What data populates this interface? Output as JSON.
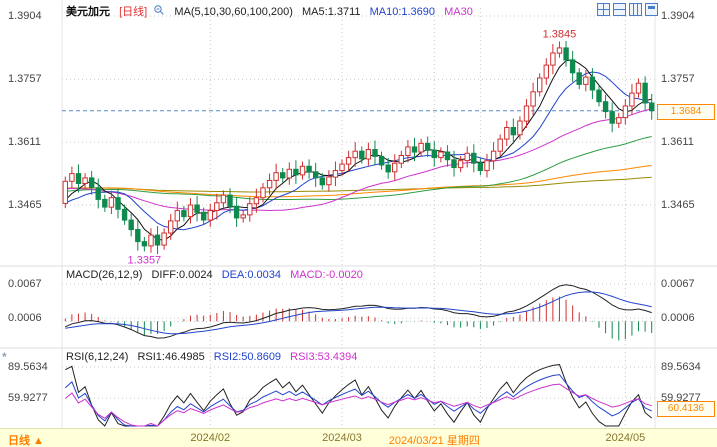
{
  "header": {
    "symbol": "美元加元",
    "period_tag": "[日线]",
    "ma_label": "MA(5,10,30,60,100,200)",
    "ma5": "MA5:1.3711",
    "ma10": "MA10:1.3690",
    "ma30": "MA30"
  },
  "price_axis": {
    "ticks": [
      "1.3904",
      "1.3757",
      "1.3611",
      "1.3465"
    ],
    "last_price": "1.3684"
  },
  "annotations": {
    "high": "1.3845",
    "low": "1.3357"
  },
  "macd_header": {
    "title": "MACD(26,12,9)",
    "diff": "DIFF:0.0024",
    "dea": "DEA:0.0034",
    "macd": "MACD:-0.0020",
    "ticks": [
      "0.0067",
      "0.0006"
    ]
  },
  "rsi_header": {
    "title": "RSI(6,12,24)",
    "rsi1": "RSI1:46.4985",
    "rsi2": "RSI2:50.8609",
    "rsi3": "RSI3:53.4394",
    "ticks": [
      "89.5634",
      "59.9277"
    ],
    "crosshair_value": "60.4136"
  },
  "bottom": {
    "period": "日线 ▲",
    "ticks": [
      {
        "label": "2024/02",
        "idx": 22,
        "highlight": false
      },
      {
        "label": "2024/03",
        "idx": 42,
        "highlight": false
      },
      {
        "label": "2024/03/21 星期四",
        "idx": 56,
        "highlight": true
      },
      {
        "label": "2024/05",
        "idx": 85,
        "highlight": false
      }
    ]
  },
  "colors": {
    "up": "#d03030",
    "down": "#0f8a4e",
    "blue": "#2244cc",
    "magenta": "#cc33cc",
    "orange": "#ff7f00",
    "last_price_box": "#ff8800",
    "grid": "#c8c8c8",
    "dashed_price_line": "#5c88c5",
    "bottom_bar_bg": "#ffffd9",
    "ma": [
      "#111111",
      "#2244cc",
      "#cc33cc",
      "#2f9e44",
      "#ff8800",
      "#9a8a00"
    ]
  },
  "chart_data": [
    {
      "type": "candlestick",
      "title": "美元加元 日线",
      "ma_periods": [
        5,
        10,
        30,
        60,
        100,
        200
      ],
      "y_ticks": [
        1.3904,
        1.3757,
        1.3611,
        1.3465
      ],
      "ylim": [
        1.3323,
        1.3941
      ],
      "last_close": 1.3684,
      "high_point": {
        "index": 75,
        "value": 1.3845
      },
      "low_point": {
        "index": 12,
        "value": 1.3357
      },
      "x_grid_indices": [
        22,
        42,
        63,
        85
      ],
      "crosshair_index": 56,
      "closes": [
        1.352,
        1.3538,
        1.3515,
        1.3528,
        1.3505,
        1.3478,
        1.346,
        1.3482,
        1.3455,
        1.343,
        1.3408,
        1.338,
        1.337,
        1.3395,
        1.3372,
        1.34,
        1.3428,
        1.3452,
        1.3438,
        1.3465,
        1.3448,
        1.343,
        1.3452,
        1.347,
        1.3488,
        1.3462,
        1.3435,
        1.3442,
        1.3468,
        1.3482,
        1.3505,
        1.3522,
        1.354,
        1.3528,
        1.3548,
        1.3535,
        1.3555,
        1.3542,
        1.3528,
        1.3512,
        1.353,
        1.3545,
        1.356,
        1.3575,
        1.359,
        1.3572,
        1.3594,
        1.3578,
        1.3558,
        1.3542,
        1.3562,
        1.358,
        1.36,
        1.3588,
        1.3608,
        1.3592,
        1.3575,
        1.3588,
        1.357,
        1.3552,
        1.3568,
        1.3585,
        1.3562,
        1.3545,
        1.3568,
        1.359,
        1.3618,
        1.3645,
        1.3628,
        1.366,
        1.3695,
        1.3728,
        1.376,
        1.379,
        1.3818,
        1.383,
        1.3802,
        1.3772,
        1.3745,
        1.3762,
        1.3732,
        1.3705,
        1.3682,
        1.3655,
        1.3668,
        1.3695,
        1.3725,
        1.3748,
        1.3702,
        1.3684
      ]
    },
    {
      "type": "macd",
      "params": [
        26,
        12,
        9
      ],
      "last": {
        "diff": 0.0024,
        "dea": 0.0034,
        "macd": -0.002
      },
      "y_ticks": [
        0.0067,
        0.0006
      ],
      "ylim": [
        -0.0048,
        0.0099
      ]
    },
    {
      "type": "rsi",
      "params": [
        6,
        12,
        24
      ],
      "last": {
        "rsi1": 46.4985,
        "rsi2": 50.8609,
        "rsi3": 53.4394
      },
      "y_ticks": [
        89.5634,
        59.9277
      ],
      "ylim": [
        31.2,
        107.7
      ]
    }
  ]
}
